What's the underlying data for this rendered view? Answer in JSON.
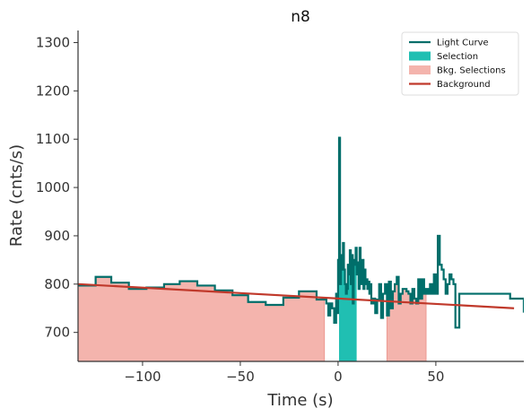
{
  "chart_data": {
    "type": "line",
    "title": "n8",
    "xlabel": "Time (s)",
    "ylabel": "Rate (cnts/s)",
    "xlim": [
      -133,
      95
    ],
    "ylim": [
      640,
      1325
    ],
    "xticks": [
      -100,
      -50,
      0,
      50
    ],
    "xtick_labels": [
      "−100",
      "−50",
      "0",
      "50"
    ],
    "yticks": [
      700,
      800,
      900,
      1000,
      1100,
      1200,
      1300
    ],
    "ytick_labels": [
      "700",
      "800",
      "900",
      "1000",
      "1100",
      "1200",
      "1300"
    ],
    "grid": false,
    "legend_position": "top-right",
    "legend": [
      {
        "label": "Light Curve",
        "kind": "line",
        "color": "#006e6a"
      },
      {
        "label": "Selection",
        "kind": "patch",
        "color": "#20bfb2"
      },
      {
        "label": "Bkg. Selections",
        "kind": "patch",
        "color": "#f4b4ad"
      },
      {
        "label": "Background",
        "kind": "line",
        "color": "#c0392b"
      }
    ],
    "selection": {
      "x": [
        0.5,
        9.5
      ]
    },
    "bkg_selections": [
      {
        "x": [
          -133,
          -7
        ]
      },
      {
        "x": [
          25,
          45
        ]
      }
    ],
    "background": {
      "x": [
        -133,
        90
      ],
      "y": [
        800,
        750
      ]
    },
    "light_curve": {
      "x": [
        -133,
        -124,
        -116,
        -107,
        -98,
        -89,
        -81,
        -72,
        -63,
        -54,
        -46,
        -37,
        -28,
        -20,
        -11,
        -6,
        -5,
        -4,
        -3,
        -2,
        -1,
        -0.5,
        0,
        0.5,
        1,
        1.5,
        2,
        2.5,
        3,
        3.5,
        4,
        4.5,
        5,
        5.5,
        6,
        6.5,
        7,
        7.5,
        8,
        8.5,
        9,
        9.5,
        10,
        10.5,
        11,
        11.5,
        12,
        12.5,
        13,
        13.5,
        14,
        14.5,
        15,
        15.5,
        16,
        16.5,
        17,
        18,
        19,
        20,
        21,
        22,
        23,
        24,
        25,
        26,
        27,
        28,
        29,
        30,
        31,
        32,
        33,
        34,
        35,
        36,
        37,
        38,
        39,
        40,
        41,
        42,
        43,
        44,
        45,
        46,
        47,
        48,
        49,
        50,
        51,
        52,
        53,
        54,
        55,
        56,
        57,
        58,
        59,
        60,
        62,
        70,
        88,
        95
      ],
      "y": [
        797,
        815,
        803,
        790,
        793,
        800,
        806,
        797,
        787,
        777,
        763,
        757,
        772,
        785,
        768,
        760,
        735,
        760,
        750,
        720,
        780,
        740,
        850,
        1103,
        800,
        860,
        830,
        885,
        830,
        800,
        780,
        790,
        840,
        820,
        870,
        800,
        860,
        760,
        840,
        850,
        875,
        820,
        845,
        790,
        875,
        840,
        800,
        850,
        790,
        830,
        800,
        810,
        790,
        805,
        780,
        800,
        760,
        770,
        740,
        768,
        800,
        730,
        780,
        800,
        735,
        805,
        750,
        785,
        800,
        815,
        760,
        780,
        790,
        790,
        785,
        780,
        760,
        790,
        770,
        760,
        810,
        770,
        810,
        780,
        790,
        780,
        800,
        780,
        820,
        780,
        900,
        840,
        830,
        810,
        780,
        800,
        820,
        810,
        800,
        710,
        780,
        780,
        770,
        743
      ]
    }
  }
}
